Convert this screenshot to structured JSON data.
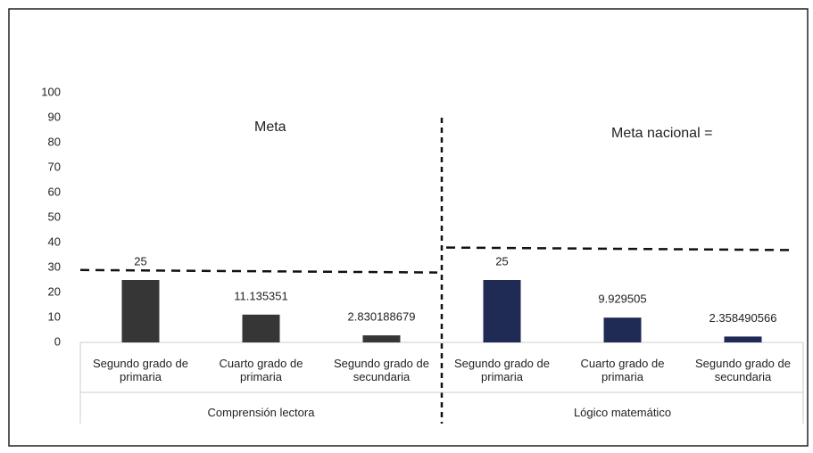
{
  "chart_data": {
    "type": "bar",
    "categories": [
      "Segundo grado de primaria",
      "Cuarto grado de primaria",
      "Segundo grado de secundaria",
      "Segundo grado de primaria",
      "Cuarto grado de primaria",
      "Segundo grado de secundaria"
    ],
    "groups": [
      "Comprensión lectora",
      "Lógico matemático"
    ],
    "values": [
      25,
      11.135351,
      2.830188679,
      25,
      9.929505,
      2.358490566
    ],
    "colors": [
      "#363636",
      "#363636",
      "#363636",
      "#1f2a55",
      "#1f2a55",
      "#1f2a55"
    ],
    "ylim": [
      0,
      100
    ],
    "yticks": [
      0,
      10,
      20,
      30,
      40,
      50,
      60,
      70,
      80,
      90,
      100
    ],
    "grid": false,
    "annotations": [
      {
        "text": "Meta",
        "start": 29,
        "end": 28
      },
      {
        "text": "Meta nacional =",
        "start": 38,
        "end": 37
      }
    ]
  }
}
